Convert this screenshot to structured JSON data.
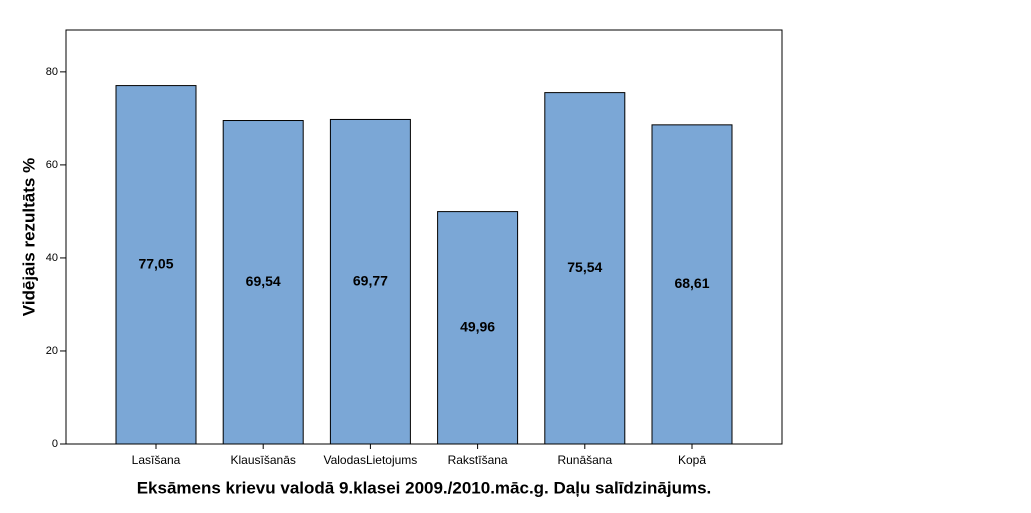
{
  "chart_data": {
    "type": "bar",
    "x_label": "Eksāmens krievu valodā 9.klasei 2009./2010.māc.g. Daļu salīdzinājums.",
    "y_label": "Vidējais rezultāts %",
    "categories": [
      "Lasīšana",
      "Klausīšanās",
      "ValodasLietojums",
      "Rakstīšana",
      "Runāšana",
      "Kopā"
    ],
    "values": [
      77.05,
      69.54,
      69.77,
      49.96,
      75.54,
      68.61
    ],
    "value_labels": [
      "77,05",
      "69,54",
      "69,77",
      "49,96",
      "75,54",
      "68,61"
    ],
    "color": "#7ba7d6",
    "ylim": [
      0,
      89
    ],
    "yticks": [
      0,
      20,
      40,
      60,
      80
    ],
    "grid": false
  }
}
